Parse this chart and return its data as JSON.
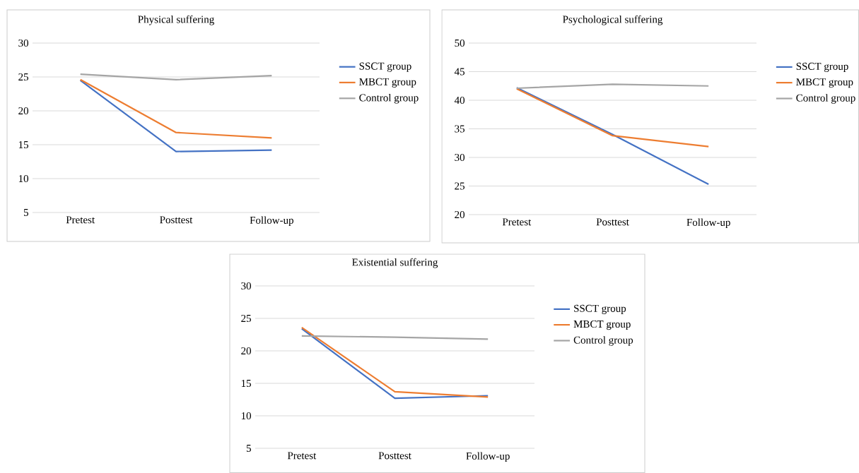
{
  "chart_data": [
    {
      "type": "line",
      "title": "Physical suffering",
      "categories": [
        "Pretest",
        "Posttest",
        "Follow-up"
      ],
      "series": [
        {
          "name": "SSCT group",
          "color": "#4472c4",
          "values": [
            24.5,
            14.0,
            14.2
          ]
        },
        {
          "name": "MBCT group",
          "color": "#ed7d31",
          "values": [
            24.6,
            16.8,
            16.0
          ]
        },
        {
          "name": "Control group",
          "color": "#a5a5a5",
          "values": [
            25.4,
            24.6,
            25.2
          ]
        }
      ],
      "ylim": [
        5,
        30
      ],
      "yticks": [
        5,
        10,
        15,
        20,
        25,
        30
      ],
      "grid": "y",
      "legend": "right"
    },
    {
      "type": "line",
      "title": "Psychological suffering",
      "categories": [
        "Pretest",
        "Posttest",
        "Follow-up"
      ],
      "series": [
        {
          "name": "SSCT group",
          "color": "#4472c4",
          "values": [
            42.2,
            34.0,
            25.3
          ]
        },
        {
          "name": "MBCT group",
          "color": "#ed7d31",
          "values": [
            42.0,
            33.8,
            31.9
          ]
        },
        {
          "name": "Control group",
          "color": "#a5a5a5",
          "values": [
            42.1,
            42.8,
            42.5
          ]
        }
      ],
      "ylim": [
        20,
        50
      ],
      "yticks": [
        20,
        25,
        30,
        35,
        40,
        45,
        50
      ],
      "grid": "y",
      "legend": "right"
    },
    {
      "type": "line",
      "title": "Existential suffering",
      "categories": [
        "Pretest",
        "Posttest",
        "Follow-up"
      ],
      "series": [
        {
          "name": "SSCT group",
          "color": "#4472c4",
          "values": [
            23.4,
            12.7,
            13.1
          ]
        },
        {
          "name": "MBCT group",
          "color": "#ed7d31",
          "values": [
            23.6,
            13.7,
            12.9
          ]
        },
        {
          "name": "Control group",
          "color": "#a5a5a5",
          "values": [
            22.3,
            22.1,
            21.8
          ]
        }
      ],
      "ylim": [
        5,
        30
      ],
      "yticks": [
        5,
        10,
        15,
        20,
        25,
        30
      ],
      "grid": "y",
      "legend": "right"
    }
  ]
}
